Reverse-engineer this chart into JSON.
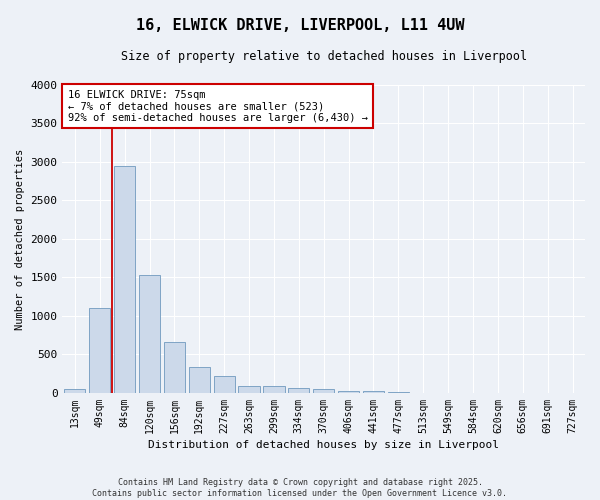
{
  "title": "16, ELWICK DRIVE, LIVERPOOL, L11 4UW",
  "subtitle": "Size of property relative to detached houses in Liverpool",
  "xlabel": "Distribution of detached houses by size in Liverpool",
  "ylabel": "Number of detached properties",
  "bar_color": "#ccd9ea",
  "bar_edge_color": "#7099be",
  "background_color": "#edf1f7",
  "grid_color": "#ffffff",
  "annotation_line_color": "#cc0000",
  "annotation_box_color": "#cc0000",
  "annotation_text_line1": "16 ELWICK DRIVE: 75sqm",
  "annotation_text_line2": "← 7% of detached houses are smaller (523)",
  "annotation_text_line3": "92% of semi-detached houses are larger (6,430) →",
  "footer": "Contains HM Land Registry data © Crown copyright and database right 2025.\nContains public sector information licensed under the Open Government Licence v3.0.",
  "categories": [
    "13sqm",
    "49sqm",
    "84sqm",
    "120sqm",
    "156sqm",
    "192sqm",
    "227sqm",
    "263sqm",
    "299sqm",
    "334sqm",
    "370sqm",
    "406sqm",
    "441sqm",
    "477sqm",
    "513sqm",
    "549sqm",
    "584sqm",
    "620sqm",
    "656sqm",
    "691sqm",
    "727sqm"
  ],
  "values": [
    55,
    1100,
    2950,
    1530,
    660,
    340,
    220,
    95,
    90,
    70,
    45,
    25,
    30,
    10,
    5,
    5,
    3,
    2,
    1,
    1,
    1
  ],
  "red_line_x": 1.5,
  "ylim": [
    0,
    4000
  ],
  "yticks": [
    0,
    500,
    1000,
    1500,
    2000,
    2500,
    3000,
    3500,
    4000
  ],
  "figwidth": 6.0,
  "figheight": 5.0,
  "dpi": 100
}
